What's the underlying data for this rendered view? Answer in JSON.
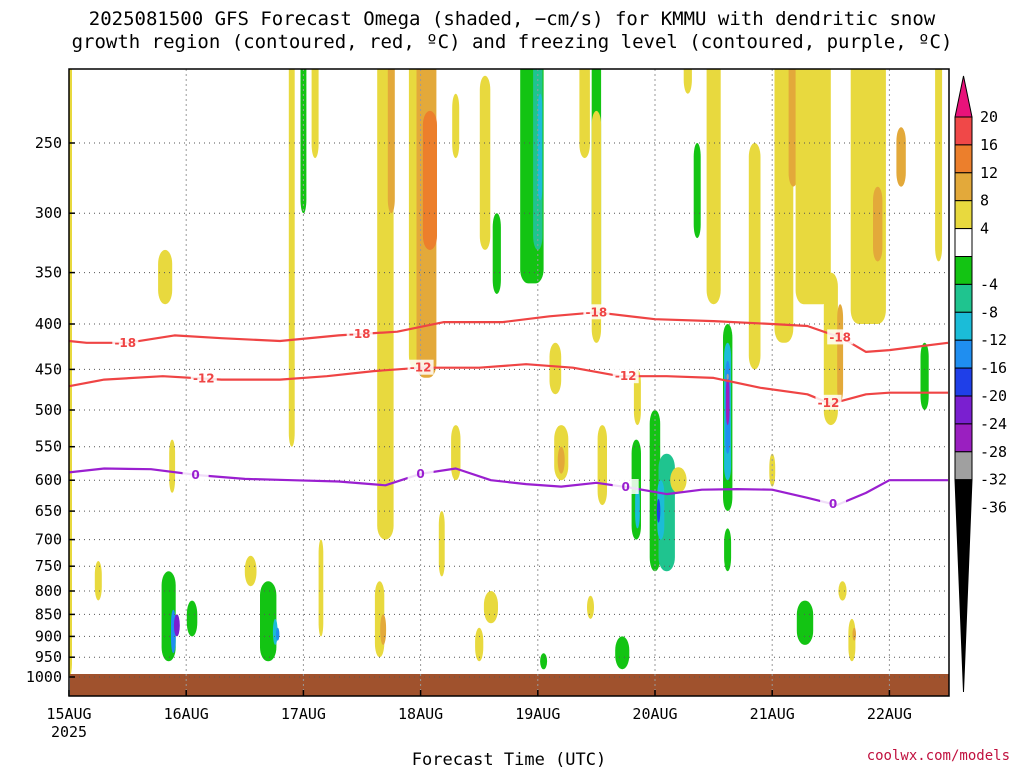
{
  "title": {
    "line1": "2025081500 GFS Forecast Omega (shaded, −cm/s) for KMMU with dendritic snow",
    "line2": "growth region (contoured, red, ºC) and freezing level (contoured, purple, ºC)"
  },
  "credit": "coolwx.com/models",
  "colors": {
    "dendritic_contour": "#ef4444",
    "freezing_contour": "#9a1fd0",
    "ground": "#a0522d",
    "grid": "#9a9a9a"
  },
  "chart_data": {
    "type": "heatmap",
    "xlabel": "Forecast Time (UTC)",
    "ylabel": "",
    "y_scale": "log-pressure, inverted",
    "x_ticks": [
      {
        "label": "15AUG",
        "sub": "2025",
        "day": 0
      },
      {
        "label": "16AUG",
        "sub": "",
        "day": 1
      },
      {
        "label": "17AUG",
        "sub": "",
        "day": 2
      },
      {
        "label": "18AUG",
        "sub": "",
        "day": 3
      },
      {
        "label": "19AUG",
        "sub": "",
        "day": 4
      },
      {
        "label": "20AUG",
        "sub": "",
        "day": 5
      },
      {
        "label": "21AUG",
        "sub": "",
        "day": 6
      },
      {
        "label": "22AUG",
        "sub": "",
        "day": 7
      }
    ],
    "xlim_days": [
      0,
      7.5
    ],
    "y_ticks": [
      250,
      300,
      350,
      400,
      450,
      500,
      550,
      600,
      650,
      700,
      750,
      800,
      850,
      900,
      950,
      1000
    ],
    "ylim_hPa": [
      200,
      1030
    ],
    "colorbar": {
      "labels": [
        "20",
        "16",
        "12",
        "8",
        "4",
        "-4",
        "-8",
        "-12",
        "-16",
        "-20",
        "-24",
        "-28",
        "-32",
        "-36"
      ],
      "bins": [
        {
          "range": "above 20",
          "color": "#e8127a"
        },
        {
          "range": "16 to 20",
          "color": "#f04848"
        },
        {
          "range": "12 to 16",
          "color": "#ec7f2c"
        },
        {
          "range": "8 to 12",
          "color": "#e3a93a"
        },
        {
          "range": "4 to 8",
          "color": "#e8d93e"
        },
        {
          "range": "-4 to 4",
          "color": "#ffffff"
        },
        {
          "range": "-8 to -4",
          "color": "#13c413"
        },
        {
          "range": "-12 to -8",
          "color": "#1fc48f"
        },
        {
          "range": "-16 to -12",
          "color": "#1bbcd8"
        },
        {
          "range": "-20 to -16",
          "color": "#1f8ef0"
        },
        {
          "range": "-24 to -20",
          "color": "#1f3fe8"
        },
        {
          "range": "-28 to -24",
          "color": "#7a1fd0"
        },
        {
          "range": "-32 to -28",
          "color": "#9a1fc0"
        },
        {
          "range": "-36 to -32",
          "color": "#a0a0a0"
        },
        {
          "range": "below -36",
          "color": "#000000"
        }
      ]
    },
    "contours": [
      {
        "level": "-18",
        "color": "#ef4444",
        "points": [
          [
            0,
            418
          ],
          [
            0.15,
            420
          ],
          [
            0.5,
            420
          ],
          [
            0.9,
            412
          ],
          [
            1.3,
            415
          ],
          [
            1.8,
            418
          ],
          [
            2.3,
            412
          ],
          [
            2.8,
            408
          ],
          [
            3.2,
            398
          ],
          [
            3.7,
            398
          ],
          [
            4.1,
            392
          ],
          [
            4.5,
            388
          ],
          [
            5.0,
            395
          ],
          [
            5.5,
            397
          ],
          [
            6.0,
            400
          ],
          [
            6.3,
            402
          ],
          [
            6.6,
            415
          ],
          [
            6.8,
            430
          ],
          [
            7.0,
            428
          ],
          [
            7.5,
            420
          ]
        ],
        "labels": [
          {
            "day": 0.48,
            "text": "-18"
          },
          {
            "day": 2.48,
            "text": "-18"
          },
          {
            "day": 4.5,
            "text": "-18"
          },
          {
            "day": 6.58,
            "text": "-18"
          }
        ]
      },
      {
        "level": "-12",
        "color": "#ef4444",
        "points": [
          [
            0,
            470
          ],
          [
            0.3,
            462
          ],
          [
            0.8,
            458
          ],
          [
            1.3,
            462
          ],
          [
            1.8,
            462
          ],
          [
            2.2,
            458
          ],
          [
            2.6,
            452
          ],
          [
            3.0,
            448
          ],
          [
            3.5,
            448
          ],
          [
            3.9,
            444
          ],
          [
            4.3,
            448
          ],
          [
            4.7,
            458
          ],
          [
            5.1,
            458
          ],
          [
            5.5,
            460
          ],
          [
            5.9,
            472
          ],
          [
            6.3,
            480
          ],
          [
            6.5,
            492
          ],
          [
            6.8,
            480
          ],
          [
            7.0,
            478
          ],
          [
            7.5,
            478
          ]
        ],
        "labels": [
          {
            "day": 1.15,
            "text": "-12"
          },
          {
            "day": 3.0,
            "text": "-12"
          },
          {
            "day": 4.75,
            "text": "-12"
          },
          {
            "day": 6.48,
            "text": "-12"
          }
        ]
      },
      {
        "level": "0",
        "color": "#9a1fd0",
        "points": [
          [
            0,
            588
          ],
          [
            0.3,
            582
          ],
          [
            0.7,
            583
          ],
          [
            1.1,
            592
          ],
          [
            1.5,
            598
          ],
          [
            1.9,
            600
          ],
          [
            2.3,
            602
          ],
          [
            2.7,
            608
          ],
          [
            3.0,
            590
          ],
          [
            3.3,
            582
          ],
          [
            3.6,
            600
          ],
          [
            3.9,
            606
          ],
          [
            4.2,
            610
          ],
          [
            4.5,
            604
          ],
          [
            4.8,
            612
          ],
          [
            5.1,
            622
          ],
          [
            5.4,
            615
          ],
          [
            5.7,
            614
          ],
          [
            6.0,
            615
          ],
          [
            6.3,
            628
          ],
          [
            6.55,
            640
          ],
          [
            6.8,
            620
          ],
          [
            7.0,
            600
          ],
          [
            7.5,
            600
          ]
        ],
        "labels": [
          {
            "day": 1.08,
            "text": "0"
          },
          {
            "day": 3.0,
            "text": "0"
          },
          {
            "day": 4.75,
            "text": "0"
          },
          {
            "day": 6.52,
            "text": "0"
          }
        ]
      }
    ],
    "omega_regions": [
      {
        "day": 0.0,
        "w": 0.05,
        "p": [
          200,
          1000
        ],
        "value": 6
      },
      {
        "day": 0.25,
        "w": 0.06,
        "p": [
          740,
          820
        ],
        "value": 6
      },
      {
        "day": 0.85,
        "w": 0.12,
        "p": [
          760,
          960
        ],
        "value": -6
      },
      {
        "day": 0.89,
        "w": 0.04,
        "p": [
          840,
          940
        ],
        "value": -18
      },
      {
        "day": 0.92,
        "w": 0.05,
        "p": [
          850,
          900
        ],
        "value": -26
      },
      {
        "day": 1.05,
        "w": 0.09,
        "p": [
          820,
          900
        ],
        "value": -6
      },
      {
        "day": 0.82,
        "w": 0.12,
        "p": [
          330,
          380
        ],
        "value": 6
      },
      {
        "day": 0.88,
        "w": 0.05,
        "p": [
          540,
          620
        ],
        "value": 6
      },
      {
        "day": 1.55,
        "w": 0.1,
        "p": [
          730,
          790
        ],
        "value": 6
      },
      {
        "day": 1.7,
        "w": 0.14,
        "p": [
          780,
          960
        ],
        "value": -6
      },
      {
        "day": 1.76,
        "w": 0.04,
        "p": [
          860,
          920
        ],
        "value": -14
      },
      {
        "day": 1.78,
        "w": 0.03,
        "p": [
          880,
          910
        ],
        "value": -18
      },
      {
        "day": 1.9,
        "w": 0.05,
        "p": [
          200,
          550
        ],
        "value": 6
      },
      {
        "day": 2.0,
        "w": 0.05,
        "p": [
          200,
          300
        ],
        "value": -6
      },
      {
        "day": 2.1,
        "w": 0.06,
        "p": [
          200,
          260
        ],
        "value": 6
      },
      {
        "day": 2.15,
        "w": 0.04,
        "p": [
          700,
          900
        ],
        "value": 6
      },
      {
        "day": 2.7,
        "w": 0.14,
        "p": [
          200,
          700
        ],
        "value": 6
      },
      {
        "day": 2.75,
        "w": 0.06,
        "p": [
          200,
          300
        ],
        "value": 10
      },
      {
        "day": 2.65,
        "w": 0.08,
        "p": [
          780,
          950
        ],
        "value": 6
      },
      {
        "day": 2.68,
        "w": 0.05,
        "p": [
          850,
          920
        ],
        "value": 10
      },
      {
        "day": 2.95,
        "w": 0.1,
        "p": [
          200,
          450
        ],
        "value": 6
      },
      {
        "day": 3.05,
        "w": 0.17,
        "p": [
          200,
          460
        ],
        "value": 10
      },
      {
        "day": 3.08,
        "w": 0.12,
        "p": [
          230,
          330
        ],
        "value": 14
      },
      {
        "day": 3.3,
        "w": 0.06,
        "p": [
          220,
          260
        ],
        "value": 6
      },
      {
        "day": 3.3,
        "w": 0.08,
        "p": [
          520,
          600
        ],
        "value": 6
      },
      {
        "day": 3.18,
        "w": 0.05,
        "p": [
          650,
          770
        ],
        "value": 6
      },
      {
        "day": 3.55,
        "w": 0.09,
        "p": [
          210,
          330
        ],
        "value": 6
      },
      {
        "day": 3.65,
        "w": 0.07,
        "p": [
          300,
          370
        ],
        "value": -6
      },
      {
        "day": 3.6,
        "w": 0.12,
        "p": [
          800,
          870
        ],
        "value": 6
      },
      {
        "day": 3.5,
        "w": 0.07,
        "p": [
          880,
          960
        ],
        "value": 6
      },
      {
        "day": 3.95,
        "w": 0.2,
        "p": [
          200,
          360
        ],
        "value": -6
      },
      {
        "day": 4.0,
        "w": 0.08,
        "p": [
          200,
          330
        ],
        "value": -10
      },
      {
        "day": 4.02,
        "w": 0.04,
        "p": [
          220,
          290
        ],
        "value": -14
      },
      {
        "day": 4.15,
        "w": 0.1,
        "p": [
          420,
          480
        ],
        "value": 6
      },
      {
        "day": 4.2,
        "w": 0.12,
        "p": [
          520,
          600
        ],
        "value": 6
      },
      {
        "day": 4.2,
        "w": 0.06,
        "p": [
          550,
          590
        ],
        "value": 10
      },
      {
        "day": 4.5,
        "w": 0.08,
        "p": [
          200,
          400
        ],
        "value": -6
      },
      {
        "day": 4.4,
        "w": 0.09,
        "p": [
          200,
          260
        ],
        "value": 6
      },
      {
        "day": 4.5,
        "w": 0.08,
        "p": [
          230,
          420
        ],
        "value": 6
      },
      {
        "day": 4.05,
        "w": 0.06,
        "p": [
          940,
          980
        ],
        "value": -6
      },
      {
        "day": 4.45,
        "w": 0.06,
        "p": [
          810,
          860
        ],
        "value": 6
      },
      {
        "day": 4.55,
        "w": 0.08,
        "p": [
          520,
          640
        ],
        "value": 6
      },
      {
        "day": 4.72,
        "w": 0.12,
        "p": [
          900,
          980
        ],
        "value": -6
      },
      {
        "day": 4.84,
        "w": 0.08,
        "p": [
          540,
          700
        ],
        "value": -6
      },
      {
        "day": 4.85,
        "w": 0.04,
        "p": [
          610,
          680
        ],
        "value": -14
      },
      {
        "day": 4.85,
        "w": 0.06,
        "p": [
          450,
          520
        ],
        "value": 6
      },
      {
        "day": 5.0,
        "w": 0.09,
        "p": [
          500,
          760
        ],
        "value": -6
      },
      {
        "day": 5.1,
        "w": 0.14,
        "p": [
          560,
          760
        ],
        "value": -10
      },
      {
        "day": 5.05,
        "w": 0.06,
        "p": [
          600,
          700
        ],
        "value": -14
      },
      {
        "day": 5.03,
        "w": 0.03,
        "p": [
          630,
          670
        ],
        "value": -20
      },
      {
        "day": 5.2,
        "w": 0.14,
        "p": [
          580,
          620
        ],
        "value": 6
      },
      {
        "day": 5.28,
        "w": 0.07,
        "p": [
          200,
          220
        ],
        "value": 6
      },
      {
        "day": 5.36,
        "w": 0.06,
        "p": [
          250,
          320
        ],
        "value": -6
      },
      {
        "day": 5.5,
        "w": 0.06,
        "p": [
          260,
          320
        ],
        "value": -8
      },
      {
        "day": 5.52,
        "w": 0.05,
        "p": [
          280,
          320
        ],
        "value": -12
      },
      {
        "day": 5.5,
        "w": 0.12,
        "p": [
          200,
          380
        ],
        "value": 6
      },
      {
        "day": 5.62,
        "w": 0.08,
        "p": [
          400,
          650
        ],
        "value": -6
      },
      {
        "day": 5.62,
        "w": 0.06,
        "p": [
          420,
          600
        ],
        "value": -12
      },
      {
        "day": 5.62,
        "w": 0.04,
        "p": [
          440,
          560
        ],
        "value": -18
      },
      {
        "day": 5.62,
        "w": 0.03,
        "p": [
          460,
          520
        ],
        "value": -28
      },
      {
        "day": 5.62,
        "w": 0.02,
        "p": [
          455,
          462
        ],
        "value": -34
      },
      {
        "day": 5.62,
        "w": 0.06,
        "p": [
          680,
          760
        ],
        "value": -6
      },
      {
        "day": 5.85,
        "w": 0.1,
        "p": [
          250,
          450
        ],
        "value": 6
      },
      {
        "day": 6.0,
        "w": 0.05,
        "p": [
          560,
          610
        ],
        "value": 6
      },
      {
        "day": 6.1,
        "w": 0.16,
        "p": [
          200,
          420
        ],
        "value": 6
      },
      {
        "day": 6.18,
        "w": 0.08,
        "p": [
          200,
          280
        ],
        "value": 10
      },
      {
        "day": 6.28,
        "w": 0.14,
        "p": [
          820,
          920
        ],
        "value": -6
      },
      {
        "day": 6.35,
        "w": 0.3,
        "p": [
          200,
          380
        ],
        "value": 6
      },
      {
        "day": 6.42,
        "w": 0.1,
        "p": [
          250,
          360
        ],
        "value": 8
      },
      {
        "day": 6.5,
        "w": 0.12,
        "p": [
          350,
          520
        ],
        "value": 6
      },
      {
        "day": 6.58,
        "w": 0.05,
        "p": [
          380,
          490
        ],
        "value": 10
      },
      {
        "day": 6.6,
        "w": 0.07,
        "p": [
          780,
          820
        ],
        "value": 6
      },
      {
        "day": 6.68,
        "w": 0.06,
        "p": [
          860,
          960
        ],
        "value": 6
      },
      {
        "day": 6.7,
        "w": 0.03,
        "p": [
          880,
          910
        ],
        "value": 10
      },
      {
        "day": 6.82,
        "w": 0.3,
        "p": [
          200,
          400
        ],
        "value": 6
      },
      {
        "day": 6.9,
        "w": 0.08,
        "p": [
          280,
          340
        ],
        "value": 10
      },
      {
        "day": 7.1,
        "w": 0.08,
        "p": [
          240,
          280
        ],
        "value": 10
      },
      {
        "day": 7.3,
        "w": 0.07,
        "p": [
          420,
          500
        ],
        "value": -6
      },
      {
        "day": 7.42,
        "w": 0.06,
        "p": [
          200,
          340
        ],
        "value": 6
      }
    ]
  }
}
